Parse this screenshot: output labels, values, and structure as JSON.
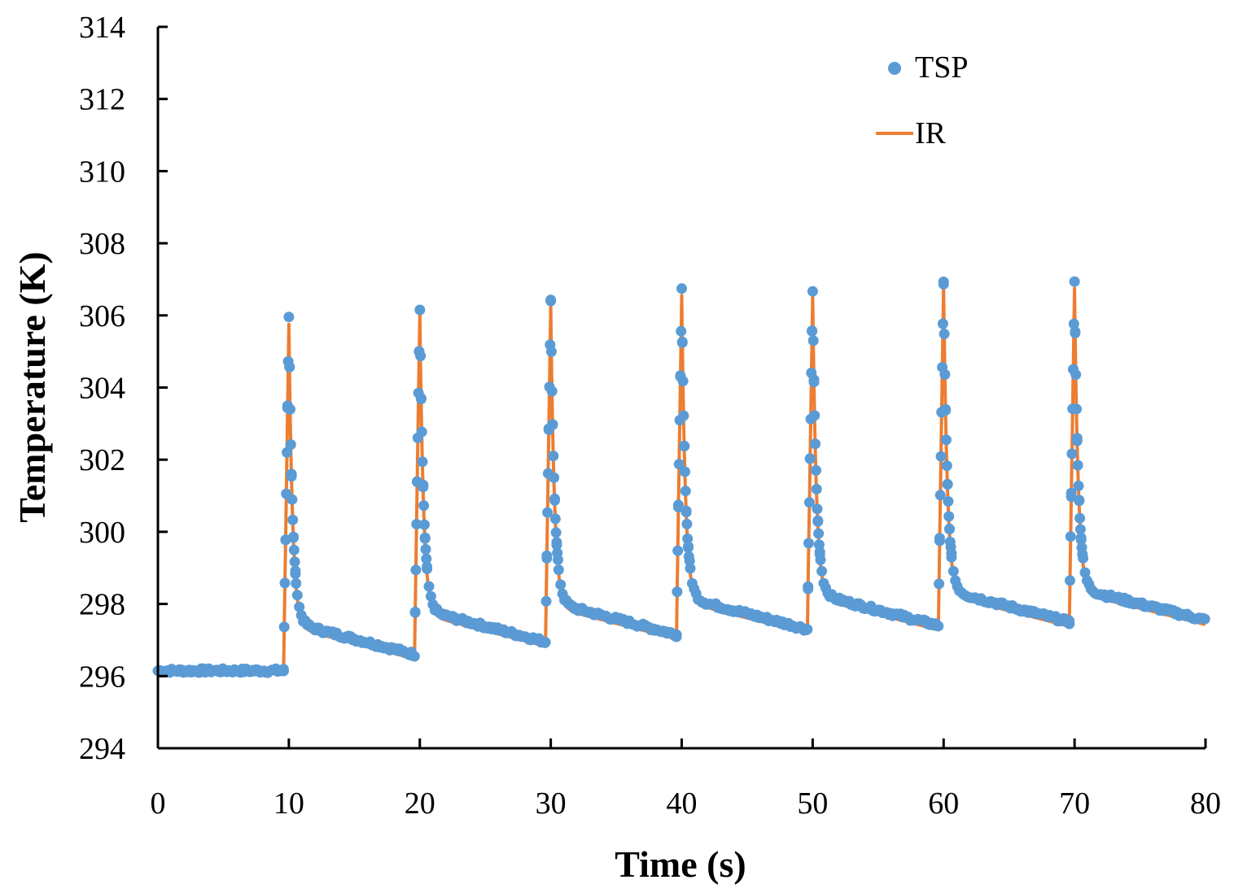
{
  "chart_data": {
    "type": "scatter",
    "title": "",
    "xlabel": "Time (s)",
    "ylabel": "Temperature (K)",
    "xlim": [
      0,
      80
    ],
    "ylim": [
      294,
      314
    ],
    "xticks": [
      0,
      10,
      20,
      30,
      40,
      50,
      60,
      70,
      80
    ],
    "yticks": [
      294,
      296,
      298,
      300,
      302,
      304,
      306,
      308,
      310,
      312,
      314
    ],
    "grid": false,
    "legend_position": "top-right",
    "colors": {
      "TSP": "#5b9bd5",
      "IR": "#ed7d31",
      "axis": "#000000"
    },
    "baseline": {
      "x_start": 0,
      "x_end": 9.6,
      "value": 296.15
    },
    "pulses": [
      {
        "start": 9.6,
        "peak_time": 10.0,
        "peak": 305.9,
        "end_time": 19.6,
        "end_value": 296.6
      },
      {
        "start": 19.6,
        "peak_time": 20.0,
        "peak": 306.2,
        "end_time": 29.6,
        "end_value": 296.95
      },
      {
        "start": 29.6,
        "peak_time": 30.0,
        "peak": 306.4,
        "end_time": 39.6,
        "end_value": 297.15
      },
      {
        "start": 39.6,
        "peak_time": 40.0,
        "peak": 306.7,
        "end_time": 49.6,
        "end_value": 297.3
      },
      {
        "start": 49.6,
        "peak_time": 50.0,
        "peak": 306.7,
        "end_time": 59.6,
        "end_value": 297.4
      },
      {
        "start": 59.6,
        "peak_time": 60.0,
        "peak": 306.9,
        "end_time": 69.6,
        "end_value": 297.5
      },
      {
        "start": 69.6,
        "peak_time": 70.0,
        "peak": 306.9,
        "end_time": 80.0,
        "end_value": 297.55
      }
    ],
    "series": [
      {
        "name": "TSP",
        "kind": "markers"
      },
      {
        "name": "IR",
        "kind": "line"
      }
    ]
  }
}
